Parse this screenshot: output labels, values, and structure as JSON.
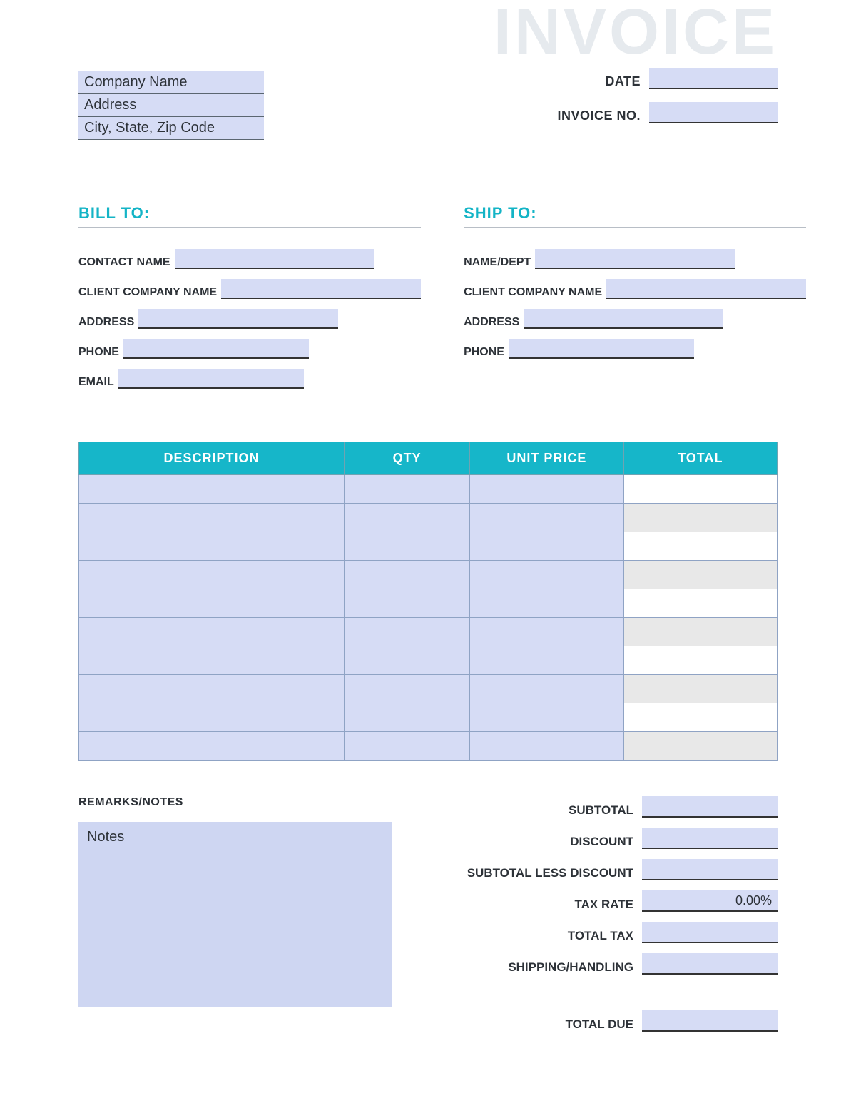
{
  "title_watermark": "INVOICE",
  "colors": {
    "fill_lavender": "#d6dcf5",
    "fill_lavender_light": "#ced6f2",
    "teal": "#16b6c9",
    "teal_text": "#14b4c6",
    "header_border": "#6fa3b2",
    "cell_border": "#8fa3c4",
    "underline": "#333333",
    "alt_grey": "#e8e8e8",
    "white": "#ffffff",
    "text": "#2d3238",
    "watermark": "#e6eaee"
  },
  "company": {
    "name": "Company Name",
    "address": "Address",
    "citystatezip": "City, State, Zip Code"
  },
  "meta": {
    "date_label": "DATE",
    "date_value": "",
    "invoice_label": "INVOICE NO.",
    "invoice_value": ""
  },
  "bill_to": {
    "heading": "BILL TO:",
    "fields": [
      {
        "label": "CONTACT NAME",
        "value": "",
        "fill_width": 280
      },
      {
        "label": "CLIENT COMPANY NAME",
        "value": "",
        "fill_width": 280
      },
      {
        "label": "ADDRESS",
        "value": "",
        "fill_width": 280
      },
      {
        "label": "PHONE",
        "value": "",
        "fill_width": 260
      },
      {
        "label": "EMAIL",
        "value": "",
        "fill_width": 260
      }
    ]
  },
  "ship_to": {
    "heading": "SHIP TO:",
    "fields": [
      {
        "label": "NAME/DEPT",
        "value": "",
        "fill_width": 280
      },
      {
        "label": "CLIENT COMPANY NAME",
        "value": "",
        "fill_width": 280
      },
      {
        "label": "ADDRESS",
        "value": "",
        "fill_width": 280
      },
      {
        "label": "PHONE",
        "value": "",
        "fill_width": 260
      }
    ]
  },
  "items_table": {
    "type": "table",
    "columns": [
      {
        "key": "description",
        "label": "DESCRIPTION",
        "width_pct": 38
      },
      {
        "key": "qty",
        "label": "QTY",
        "width_pct": 18
      },
      {
        "key": "unit_price",
        "label": "UNIT PRICE",
        "width_pct": 22
      },
      {
        "key": "total",
        "label": "TOTAL",
        "width_pct": 22
      }
    ],
    "rows": 10,
    "row_colors": {
      "desc_qty_price": "#d6dcf5",
      "total_alt": [
        "#ffffff",
        "#e8e8e8"
      ]
    },
    "cell_data": [
      [
        "",
        "",
        "",
        ""
      ],
      [
        "",
        "",
        "",
        ""
      ],
      [
        "",
        "",
        "",
        ""
      ],
      [
        "",
        "",
        "",
        ""
      ],
      [
        "",
        "",
        "",
        ""
      ],
      [
        "",
        "",
        "",
        ""
      ],
      [
        "",
        "",
        "",
        ""
      ],
      [
        "",
        "",
        "",
        ""
      ],
      [
        "",
        "",
        "",
        ""
      ],
      [
        "",
        "",
        "",
        ""
      ]
    ]
  },
  "remarks": {
    "heading": "REMARKS/NOTES",
    "notes_placeholder": "Notes"
  },
  "totals": {
    "rows": [
      {
        "label": "SUBTOTAL",
        "value": ""
      },
      {
        "label": "DISCOUNT",
        "value": ""
      },
      {
        "label": "SUBTOTAL LESS DISCOUNT",
        "value": ""
      },
      {
        "label": "TAX RATE",
        "value": "0.00%"
      },
      {
        "label": "TOTAL TAX",
        "value": ""
      },
      {
        "label": "SHIPPING/HANDLING",
        "value": ""
      }
    ],
    "final": {
      "label": "TOTAL DUE",
      "value": ""
    }
  }
}
